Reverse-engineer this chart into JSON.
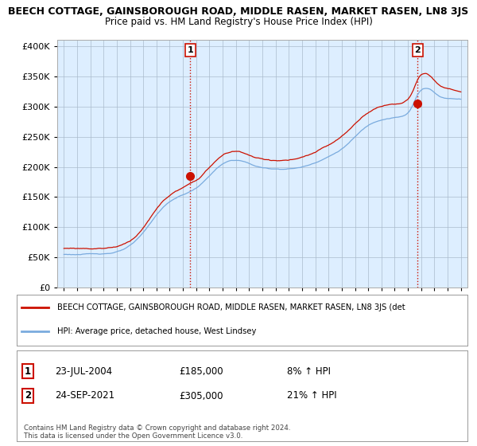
{
  "title": "BEECH COTTAGE, GAINSBOROUGH ROAD, MIDDLE RASEN, MARKET RASEN, LN8 3JS",
  "subtitle": "Price paid vs. HM Land Registry's House Price Index (HPI)",
  "ylabel_ticks": [
    "£0",
    "£50K",
    "£100K",
    "£150K",
    "£200K",
    "£250K",
    "£300K",
    "£350K",
    "£400K"
  ],
  "ytick_values": [
    0,
    50000,
    100000,
    150000,
    200000,
    250000,
    300000,
    350000,
    400000
  ],
  "ylim": [
    0,
    410000
  ],
  "legend_line1": "BEECH COTTAGE, GAINSBOROUGH ROAD, MIDDLE RASEN, MARKET RASEN, LN8 3JS (det",
  "legend_line2": "HPI: Average price, detached house, West Lindsey",
  "sale1_date": "23-JUL-2004",
  "sale1_price": "£185,000",
  "sale1_pct": "8% ↑ HPI",
  "sale2_date": "24-SEP-2021",
  "sale2_price": "£305,000",
  "sale2_pct": "21% ↑ HPI",
  "footnote": "Contains HM Land Registry data © Crown copyright and database right 2024.\nThis data is licensed under the Open Government Licence v3.0.",
  "hpi_color": "#7aabde",
  "price_color": "#cc1100",
  "dashed_color": "#cc1100",
  "bg_color": "#ffffff",
  "chart_bg_color": "#ddeeff",
  "grid_color": "#aabbcc",
  "marker1_x_year": 2004.55,
  "marker1_y": 185000,
  "marker2_x_year": 2021.73,
  "marker2_y": 305000,
  "xmin": 1994.5,
  "xmax": 2025.5
}
